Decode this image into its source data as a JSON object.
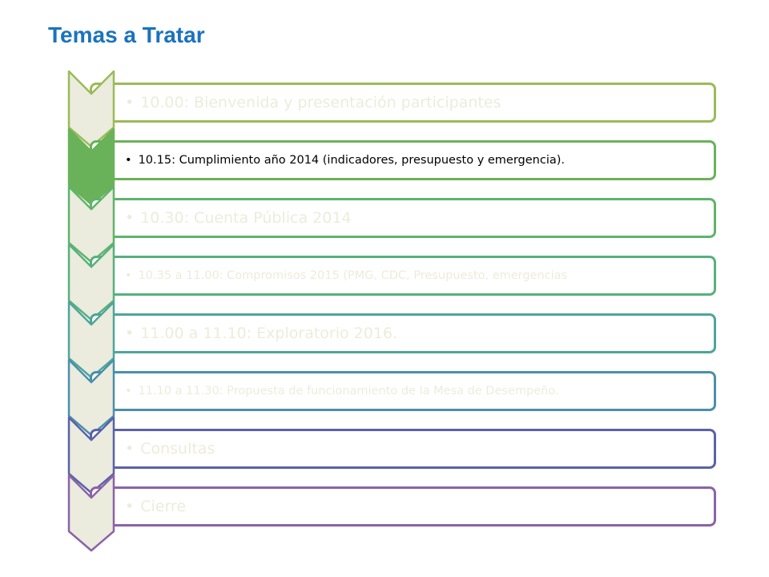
{
  "page": {
    "title": "Temas a Tratar"
  },
  "agenda": [
    {
      "text": "10.00: Bienvenida y presentación participantes",
      "size": "big",
      "active": false,
      "color": "#9bbb59",
      "fill": "#ebebde"
    },
    {
      "text": "10.15: Cumplimiento año 2014 (indicadores, presupuesto y emergencia).",
      "size": "small",
      "active": true,
      "color": "#6ab25a",
      "fill": "#6ab25a"
    },
    {
      "text": "10.30: Cuenta Pública 2014",
      "size": "big",
      "active": false,
      "color": "#5fb46b",
      "fill": "#ebebde"
    },
    {
      "text": "10.35 a 11.00: Compromisos 2015 (PMG, CDC, Presupuesto, emergencias",
      "size": "small",
      "active": false,
      "color": "#58b07e",
      "fill": "#ebebde"
    },
    {
      "text": "11.00 a 11.10: Exploratorio 2016.",
      "size": "big",
      "active": false,
      "color": "#4ea59a",
      "fill": "#ebebde"
    },
    {
      "text": "11.10 a 11.30: Propuesta de funcionamiento de la Mesa de Desempeño.",
      "size": "small",
      "active": false,
      "color": "#4a8fab",
      "fill": "#ebebde"
    },
    {
      "text": "Consultas",
      "size": "big",
      "active": false,
      "color": "#5a62a8",
      "fill": "#ebebde"
    },
    {
      "text": "Cierre",
      "size": "big",
      "active": false,
      "color": "#8b63a8",
      "fill": "#ebebde"
    }
  ],
  "style": {
    "inactive_text_color": "#ececdc",
    "active_text_color": "#000000"
  }
}
